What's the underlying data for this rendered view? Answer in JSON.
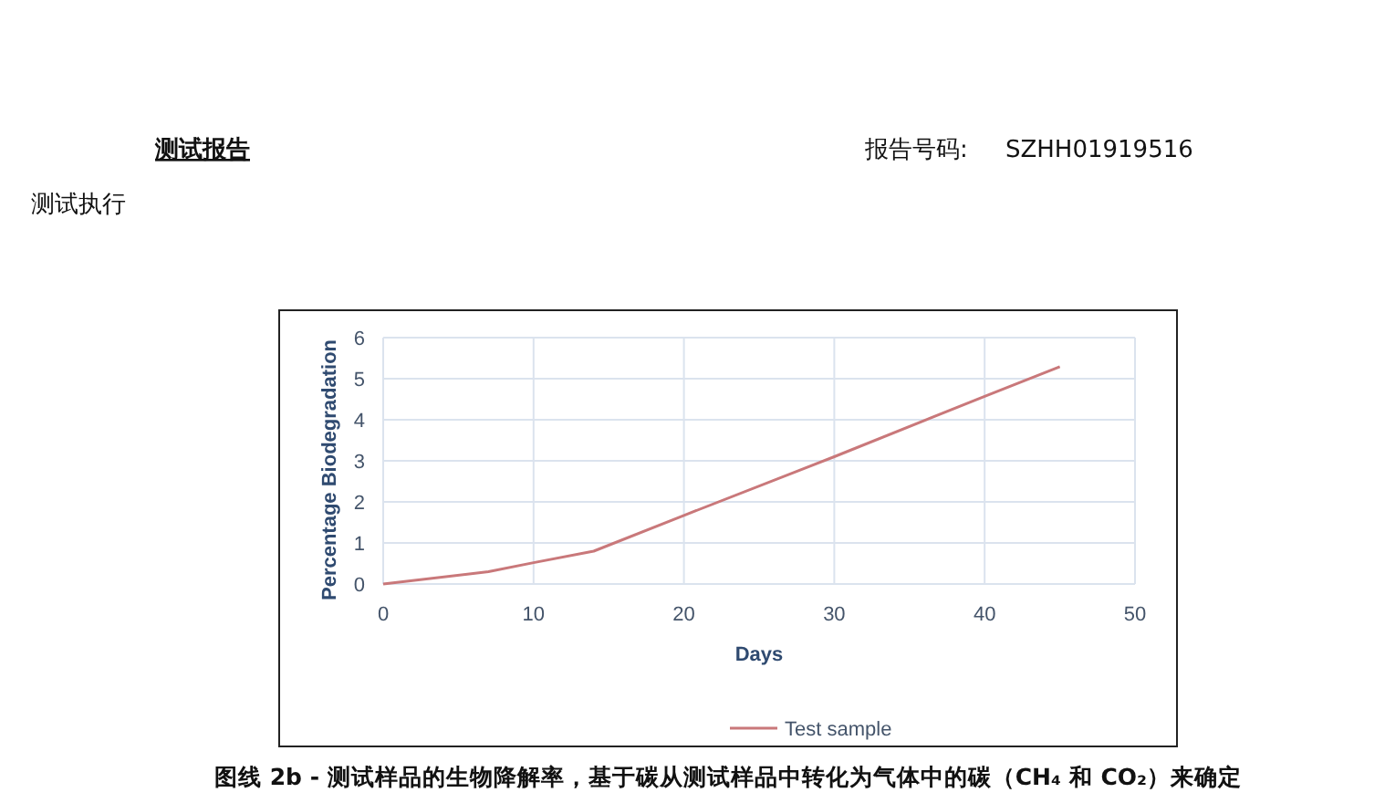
{
  "chart_data": {
    "type": "line",
    "xlabel": "Days",
    "ylabel": "Percentage Biodegradation",
    "xlim": [
      0,
      50
    ],
    "xticks": [
      0,
      10,
      20,
      30,
      40,
      50
    ],
    "ylim": [
      0,
      6
    ],
    "yticks": [
      0,
      1,
      2,
      3,
      4,
      5,
      6
    ],
    "grid": true,
    "legend": "bottom",
    "series": [
      {
        "name": "Test sample",
        "color": "#c9787a",
        "x": [
          0,
          7,
          10,
          14,
          20,
          30,
          40,
          45
        ],
        "values": [
          0,
          0.3,
          0.52,
          0.8,
          1.67,
          3.1,
          4.57,
          5.29
        ]
      }
    ],
    "annotations": [
      "测试报告",
      "报告号码:",
      "SZHH01919516",
      "测试执行",
      "图线 2b - 测试样品的生物降解率，基于碳从测试样品中转化为气体中的碳（CH₄ 和 CO₂）来确定"
    ]
  }
}
